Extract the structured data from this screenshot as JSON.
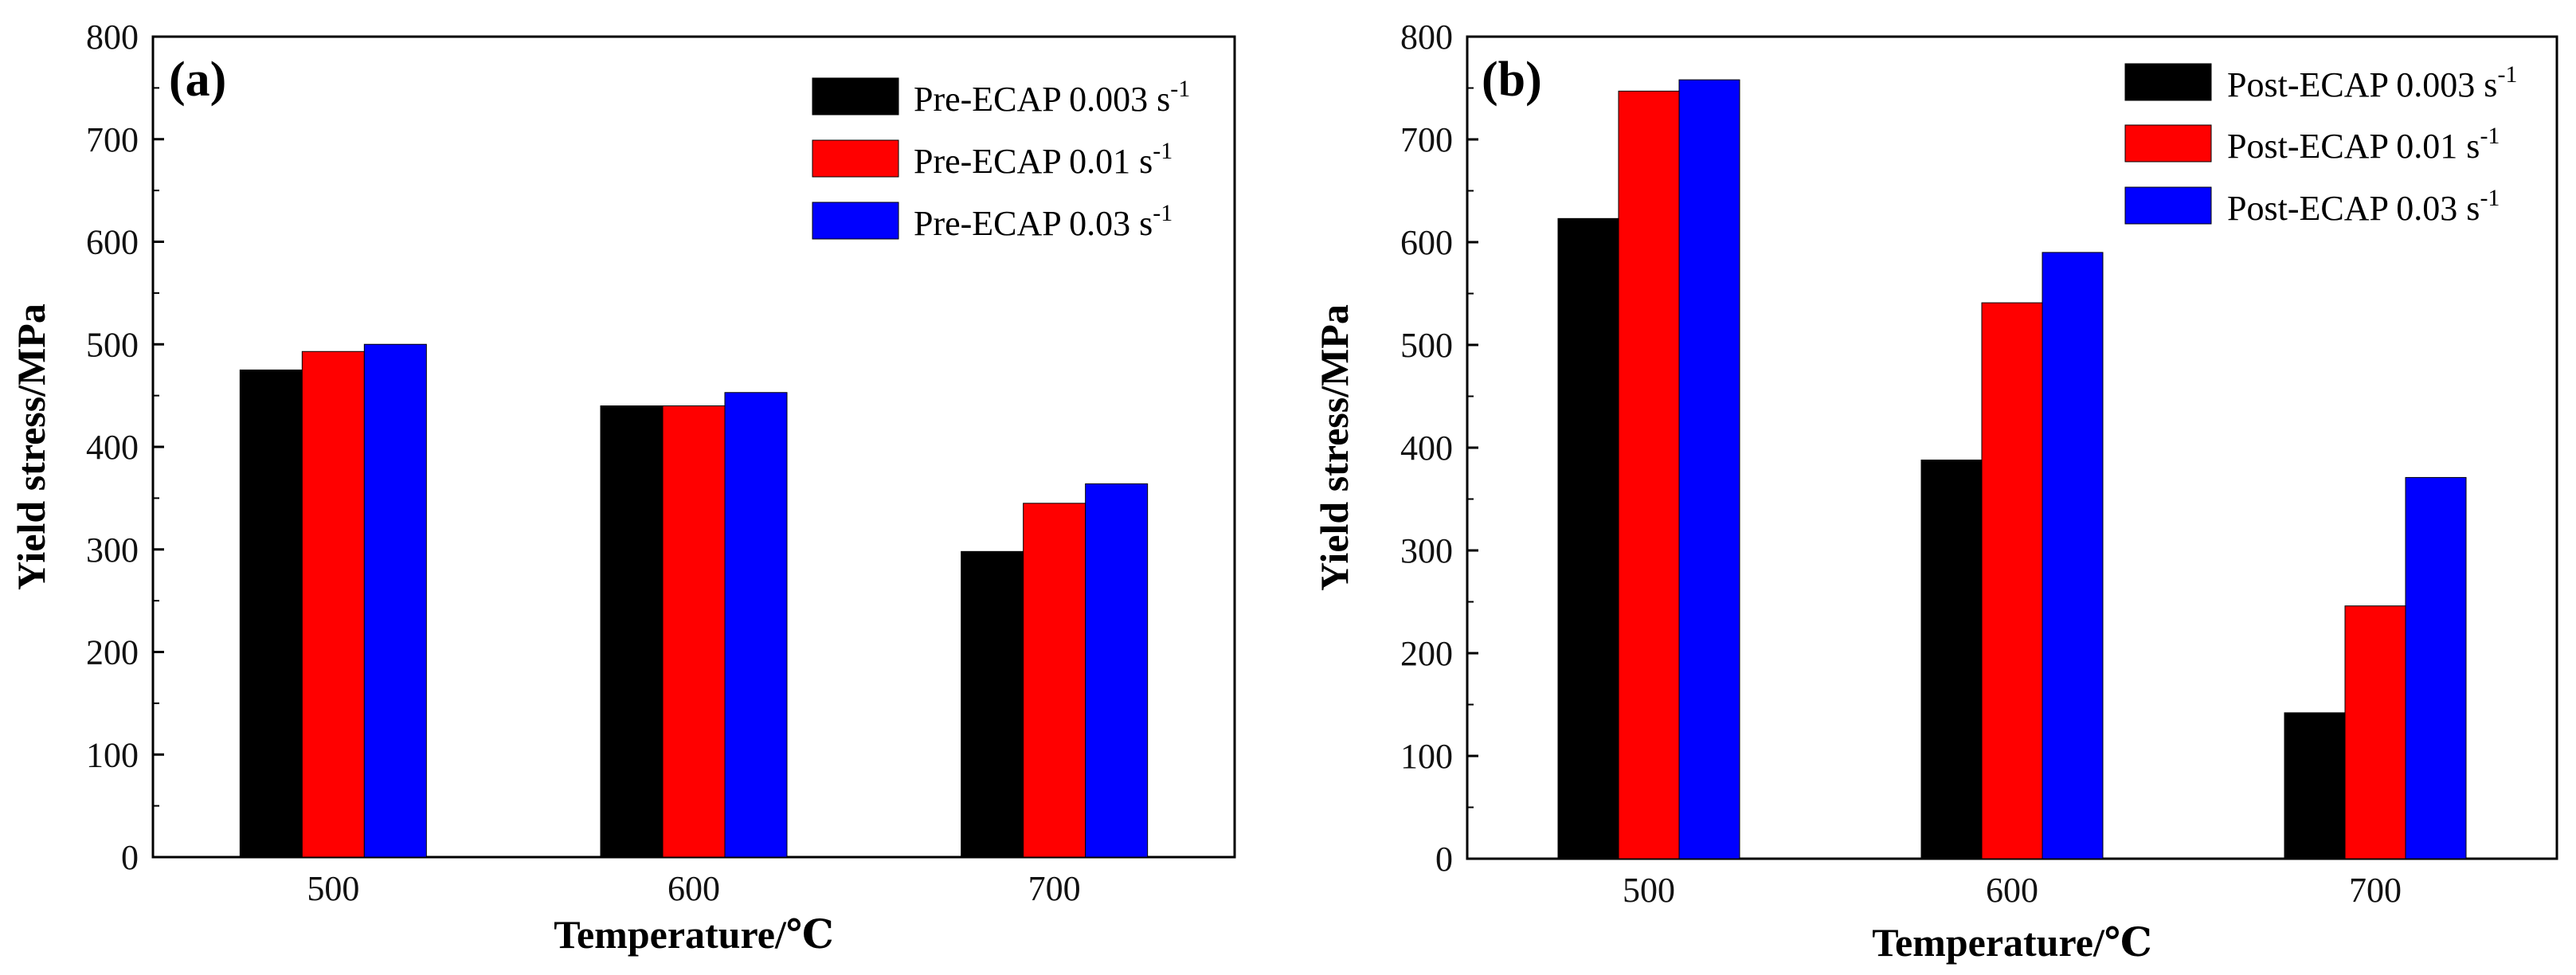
{
  "chart_data": [
    {
      "type": "bar",
      "panel_label": "(a)",
      "categories": [
        "500",
        "600",
        "700"
      ],
      "series": [
        {
          "name": "Pre-ECAP 0.003 s",
          "unit_exp": "-1",
          "color": "#000000",
          "values": [
            475,
            440,
            298
          ]
        },
        {
          "name": "Pre-ECAP 0.01 s",
          "unit_exp": "-1",
          "color": "#ff0000",
          "values": [
            493,
            440,
            345
          ]
        },
        {
          "name": "Pre-ECAP 0.03 s",
          "unit_exp": "-1",
          "color": "#0000ff",
          "values": [
            500,
            453,
            364
          ]
        }
      ],
      "xlabel": "Temperature/℃",
      "ylabel": "Yield stress/MPa",
      "ylim": [
        0,
        800
      ],
      "yticks": [
        "0",
        "100",
        "200",
        "300",
        "400",
        "500",
        "600",
        "700",
        "800"
      ],
      "legend": "top-right"
    },
    {
      "type": "bar",
      "panel_label": "(b)",
      "categories": [
        "500",
        "600",
        "700"
      ],
      "series": [
        {
          "name": "Post-ECAP 0.003 s",
          "unit_exp": "-1",
          "color": "#000000",
          "values": [
            623,
            388,
            142
          ]
        },
        {
          "name": "Post-ECAP 0.01 s",
          "unit_exp": "-1",
          "color": "#ff0000",
          "values": [
            747,
            541,
            246
          ]
        },
        {
          "name": "Post-ECAP 0.03 s",
          "unit_exp": "-1",
          "color": "#0000ff",
          "values": [
            758,
            590,
            371
          ]
        }
      ],
      "xlabel": "Temperature/℃",
      "ylabel": "Yield stress/MPa",
      "ylim": [
        0,
        800
      ],
      "yticks": [
        "0",
        "100",
        "200",
        "300",
        "400",
        "500",
        "600",
        "700",
        "800"
      ],
      "legend": "top-right"
    }
  ]
}
